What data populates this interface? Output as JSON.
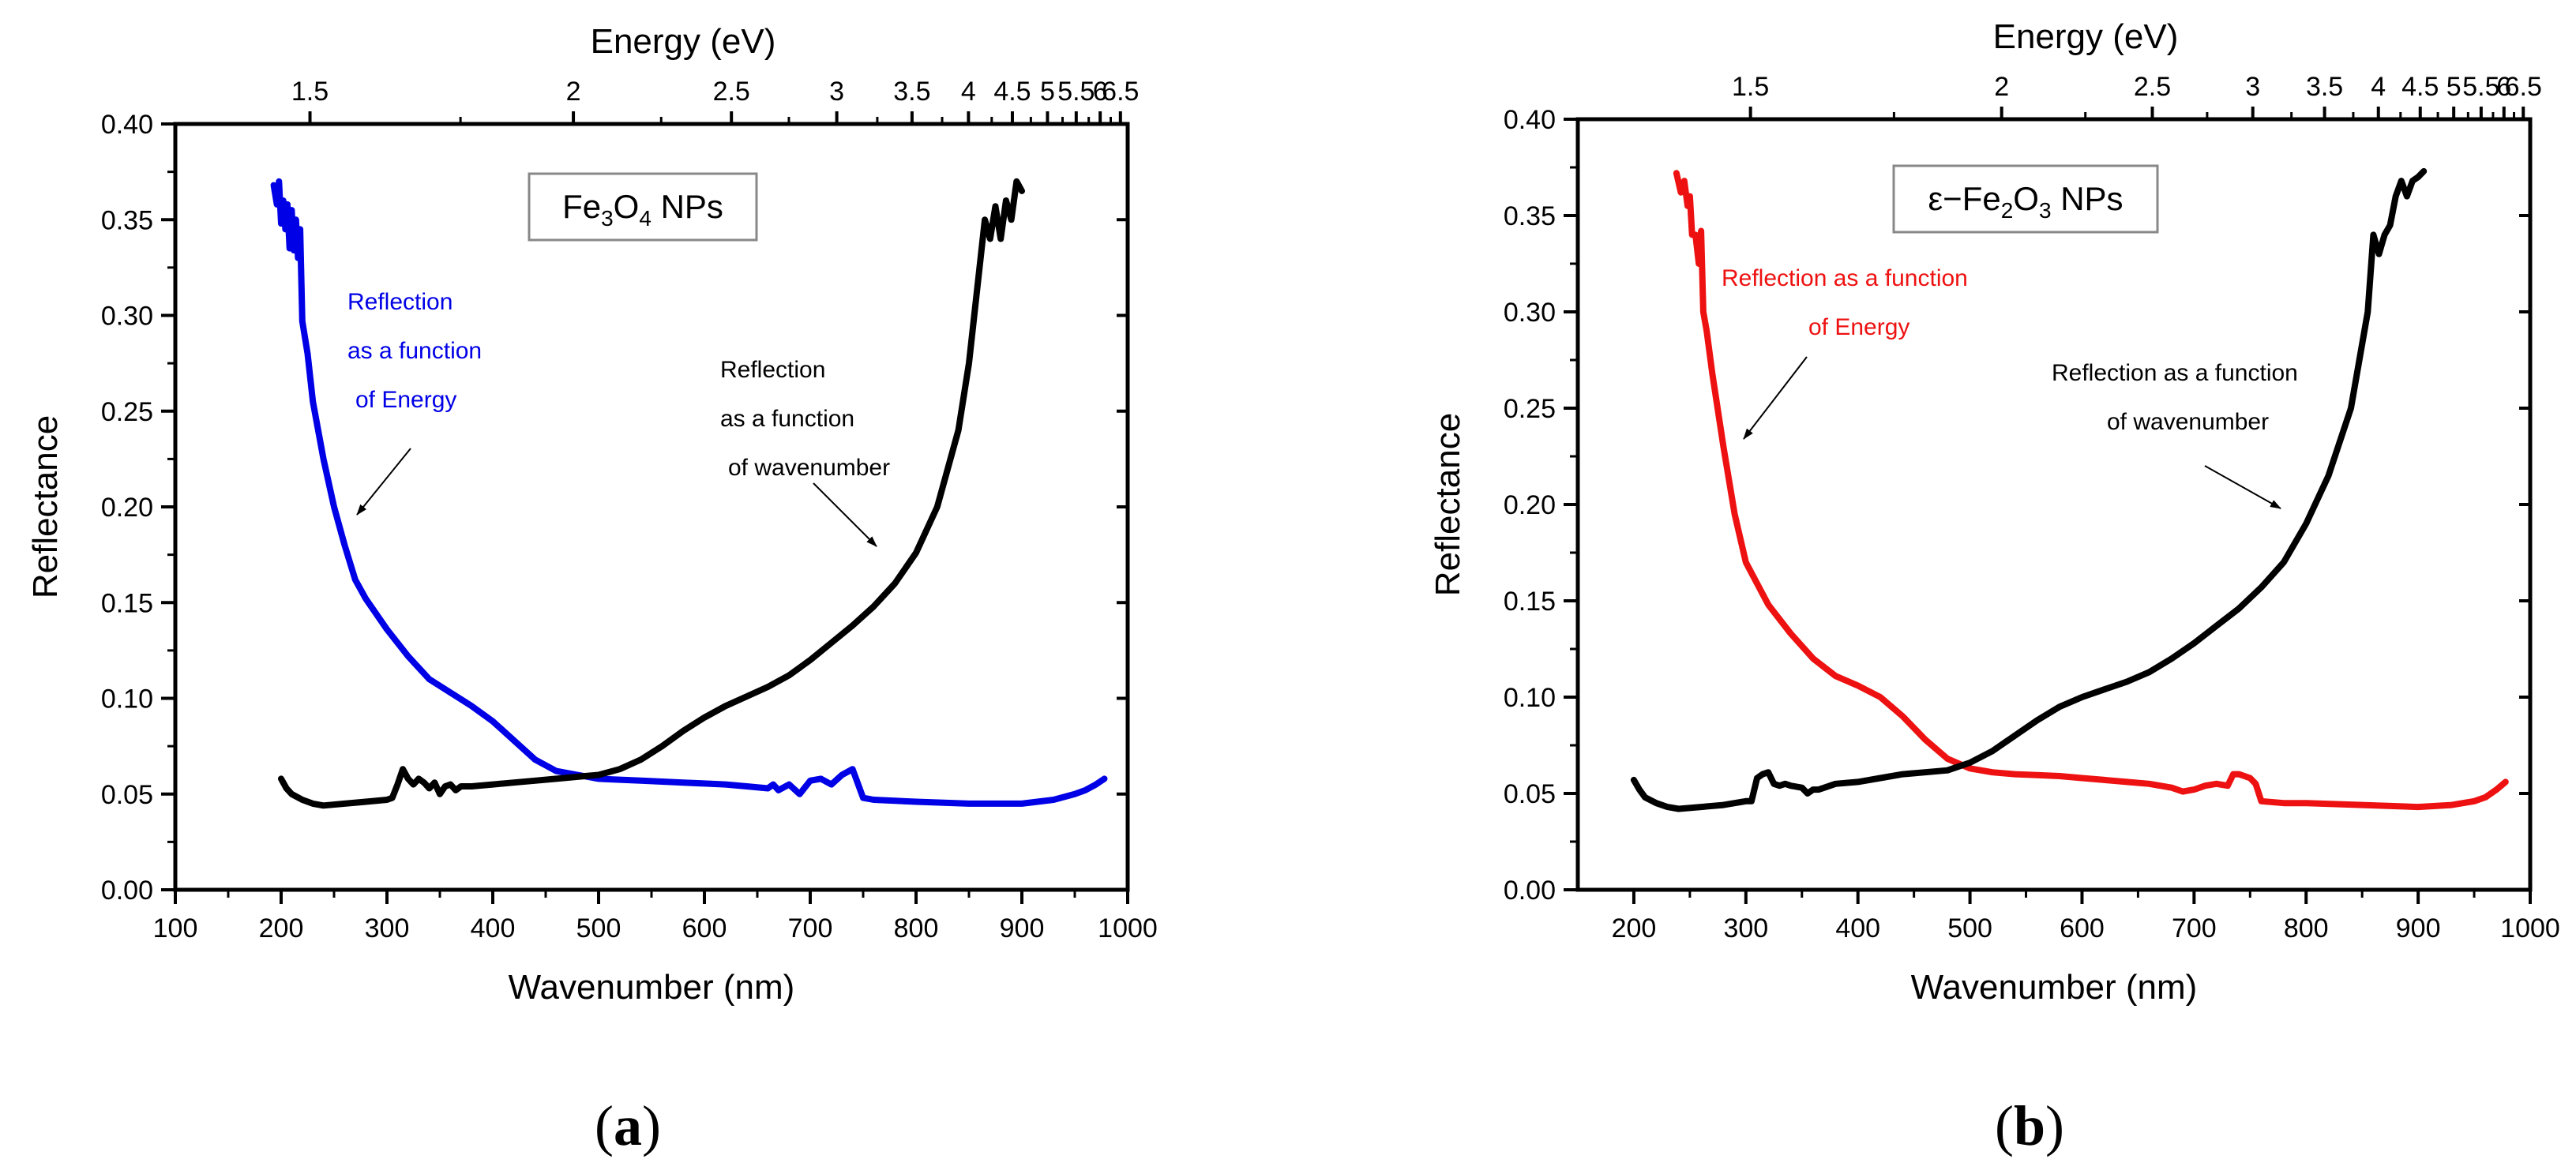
{
  "colors": {
    "axis": "#000000",
    "energy_a": "#0000e6",
    "energy_b": "#ee1111",
    "wavenumber": "#000000",
    "legend_border": "#888888"
  },
  "chart_data": [
    {
      "type": "line",
      "panel_label": "a",
      "legend_box": {
        "base": "Fe",
        "sub1": "3",
        "mid": "O",
        "sub2": "4",
        "tail": " NPs"
      },
      "xlabel": "Wavenumber (nm)",
      "x2label": "Energy (eV)",
      "ylabel": "Reflectance",
      "xlim": [
        100,
        1000
      ],
      "ylim": [
        0,
        0.4
      ],
      "x_ticks": [
        100,
        200,
        300,
        400,
        500,
        600,
        700,
        800,
        900,
        1000
      ],
      "x_tick_labels": [
        "100",
        "200",
        "300",
        "400",
        "500",
        "600",
        "700",
        "800",
        "900",
        "1000"
      ],
      "y_ticks": [
        0,
        0.05,
        0.1,
        0.15,
        0.2,
        0.25,
        0.3,
        0.35,
        0.4
      ],
      "y_tick_labels": [
        "0.00",
        "0.05",
        "0.10",
        "0.15",
        "0.20",
        "0.25",
        "0.30",
        "0.35",
        "0.40"
      ],
      "x2_ticks": [
        1.5,
        2,
        2.5,
        3,
        3.5,
        4,
        4.5,
        5,
        5.5,
        6,
        6.5
      ],
      "x2_tick_labels": [
        "1.5",
        "2",
        "2.5",
        "3",
        "3.5",
        "4",
        "4.5",
        "5",
        "5.5",
        "6",
        "6.5"
      ],
      "x2_range": [
        1.33,
        6.7
      ],
      "series": [
        {
          "role": "energy",
          "x": [
            193,
            196,
            198,
            200,
            202,
            204,
            206,
            208,
            210,
            212,
            214,
            216,
            218,
            220,
            225,
            230,
            240,
            250,
            260,
            270,
            280,
            300,
            320,
            340,
            360,
            380,
            400,
            420,
            440,
            460,
            480,
            500,
            520,
            540,
            560,
            580,
            600,
            620,
            640,
            660,
            665,
            670,
            680,
            690,
            700,
            710,
            720,
            730,
            740,
            750,
            760,
            800,
            850,
            900,
            930,
            950,
            960,
            970,
            978
          ],
          "y": [
            0.368,
            0.358,
            0.37,
            0.348,
            0.36,
            0.345,
            0.358,
            0.335,
            0.355,
            0.334,
            0.35,
            0.33,
            0.345,
            0.297,
            0.28,
            0.255,
            0.225,
            0.2,
            0.18,
            0.162,
            0.152,
            0.136,
            0.122,
            0.11,
            0.103,
            0.096,
            0.088,
            0.078,
            0.068,
            0.062,
            0.06,
            0.058,
            0.0575,
            0.057,
            0.0565,
            0.056,
            0.0555,
            0.055,
            0.054,
            0.053,
            0.055,
            0.052,
            0.055,
            0.05,
            0.057,
            0.058,
            0.055,
            0.06,
            0.063,
            0.048,
            0.047,
            0.046,
            0.045,
            0.045,
            0.047,
            0.05,
            0.052,
            0.055,
            0.058
          ]
        },
        {
          "role": "wavenumber",
          "x": [
            200,
            205,
            210,
            220,
            230,
            240,
            260,
            280,
            300,
            305,
            310,
            315,
            320,
            325,
            330,
            335,
            340,
            345,
            350,
            355,
            360,
            365,
            370,
            380,
            400,
            420,
            440,
            460,
            480,
            500,
            520,
            540,
            560,
            580,
            600,
            620,
            640,
            660,
            680,
            700,
            720,
            740,
            760,
            780,
            800,
            820,
            840,
            850,
            855,
            860,
            865,
            870,
            875,
            880,
            885,
            890,
            895,
            900
          ],
          "y": [
            0.058,
            0.053,
            0.05,
            0.047,
            0.045,
            0.044,
            0.045,
            0.046,
            0.047,
            0.048,
            0.055,
            0.063,
            0.058,
            0.055,
            0.058,
            0.056,
            0.053,
            0.056,
            0.05,
            0.054,
            0.055,
            0.052,
            0.054,
            0.054,
            0.055,
            0.056,
            0.057,
            0.058,
            0.059,
            0.06,
            0.063,
            0.068,
            0.075,
            0.083,
            0.09,
            0.096,
            0.101,
            0.106,
            0.112,
            0.12,
            0.129,
            0.138,
            0.148,
            0.16,
            0.176,
            0.2,
            0.24,
            0.275,
            0.3,
            0.325,
            0.35,
            0.34,
            0.357,
            0.34,
            0.36,
            0.35,
            0.37,
            0.365
          ]
        }
      ],
      "annotations": [
        {
          "lines": [
            "Reflection",
            "as a function",
            "of Energy"
          ],
          "color_key": "energy_a"
        },
        {
          "lines": [
            "Reflection",
            "as a function",
            "of wavenumber"
          ],
          "color_key": "wavenumber"
        }
      ]
    },
    {
      "type": "line",
      "panel_label": "b",
      "legend_box": {
        "base": "ε−Fe",
        "sub1": "2",
        "mid": "O",
        "sub2": "3",
        "tail": " NPs"
      },
      "xlabel": "Wavenumber (nm)",
      "x2label": "Energy (eV)",
      "ylabel": "Reflectance",
      "xlim": [
        150,
        1000
      ],
      "ylim": [
        0,
        0.4
      ],
      "x_ticks": [
        200,
        300,
        400,
        500,
        600,
        700,
        800,
        900,
        1000
      ],
      "x_tick_labels": [
        "200",
        "300",
        "400",
        "500",
        "600",
        "700",
        "800",
        "900",
        "1000"
      ],
      "y_ticks": [
        0,
        0.05,
        0.1,
        0.15,
        0.2,
        0.25,
        0.3,
        0.35,
        0.4
      ],
      "y_tick_labels": [
        "0.00",
        "0.05",
        "0.10",
        "0.15",
        "0.20",
        "0.25",
        "0.30",
        "0.35",
        "0.40"
      ],
      "x2_ticks": [
        1.5,
        2,
        2.5,
        3,
        3.5,
        4,
        4.5,
        5,
        5.5,
        6,
        6.5
      ],
      "x2_tick_labels": [
        "1.5",
        "2",
        "2.5",
        "3",
        "3.5",
        "4",
        "4.5",
        "5",
        "5.5",
        "6",
        "6.5"
      ],
      "x2_range": [
        1.28,
        6.7
      ],
      "series": [
        {
          "role": "energy",
          "x": [
            238,
            242,
            245,
            248,
            250,
            252,
            255,
            258,
            260,
            262,
            265,
            270,
            280,
            290,
            300,
            320,
            340,
            360,
            380,
            400,
            420,
            440,
            460,
            480,
            500,
            520,
            540,
            560,
            580,
            600,
            620,
            640,
            660,
            680,
            690,
            700,
            710,
            720,
            730,
            735,
            740,
            745,
            750,
            755,
            760,
            780,
            800,
            850,
            900,
            930,
            950,
            960,
            970,
            978
          ],
          "y": [
            0.372,
            0.362,
            0.368,
            0.355,
            0.36,
            0.34,
            0.34,
            0.325,
            0.342,
            0.3,
            0.29,
            0.268,
            0.23,
            0.195,
            0.17,
            0.148,
            0.133,
            0.12,
            0.111,
            0.106,
            0.1,
            0.09,
            0.078,
            0.068,
            0.063,
            0.061,
            0.06,
            0.0595,
            0.059,
            0.058,
            0.057,
            0.056,
            0.055,
            0.053,
            0.051,
            0.052,
            0.054,
            0.055,
            0.054,
            0.06,
            0.06,
            0.059,
            0.058,
            0.055,
            0.046,
            0.045,
            0.045,
            0.044,
            0.043,
            0.044,
            0.046,
            0.048,
            0.052,
            0.056
          ]
        },
        {
          "role": "wavenumber",
          "x": [
            200,
            205,
            210,
            220,
            230,
            240,
            260,
            280,
            300,
            305,
            310,
            315,
            320,
            325,
            330,
            335,
            340,
            350,
            355,
            360,
            365,
            370,
            380,
            400,
            420,
            440,
            460,
            480,
            500,
            520,
            540,
            560,
            580,
            600,
            620,
            640,
            660,
            680,
            700,
            720,
            740,
            760,
            780,
            800,
            820,
            840,
            855,
            860,
            865,
            870,
            875,
            880,
            885,
            890,
            895,
            900,
            905
          ],
          "y": [
            0.057,
            0.052,
            0.048,
            0.045,
            0.043,
            0.042,
            0.043,
            0.044,
            0.046,
            0.046,
            0.058,
            0.06,
            0.061,
            0.055,
            0.054,
            0.055,
            0.054,
            0.053,
            0.05,
            0.052,
            0.052,
            0.053,
            0.055,
            0.056,
            0.058,
            0.06,
            0.061,
            0.062,
            0.066,
            0.072,
            0.08,
            0.088,
            0.095,
            0.1,
            0.104,
            0.108,
            0.113,
            0.12,
            0.128,
            0.137,
            0.146,
            0.157,
            0.17,
            0.19,
            0.215,
            0.25,
            0.3,
            0.34,
            0.33,
            0.34,
            0.345,
            0.36,
            0.368,
            0.36,
            0.368,
            0.37,
            0.373
          ]
        }
      ],
      "annotations": [
        {
          "lines": [
            "Reflection as a function",
            "of Energy"
          ],
          "color_key": "energy_b"
        },
        {
          "lines": [
            "Reflection as a function",
            "of wavenumber"
          ],
          "color_key": "wavenumber"
        }
      ]
    }
  ]
}
